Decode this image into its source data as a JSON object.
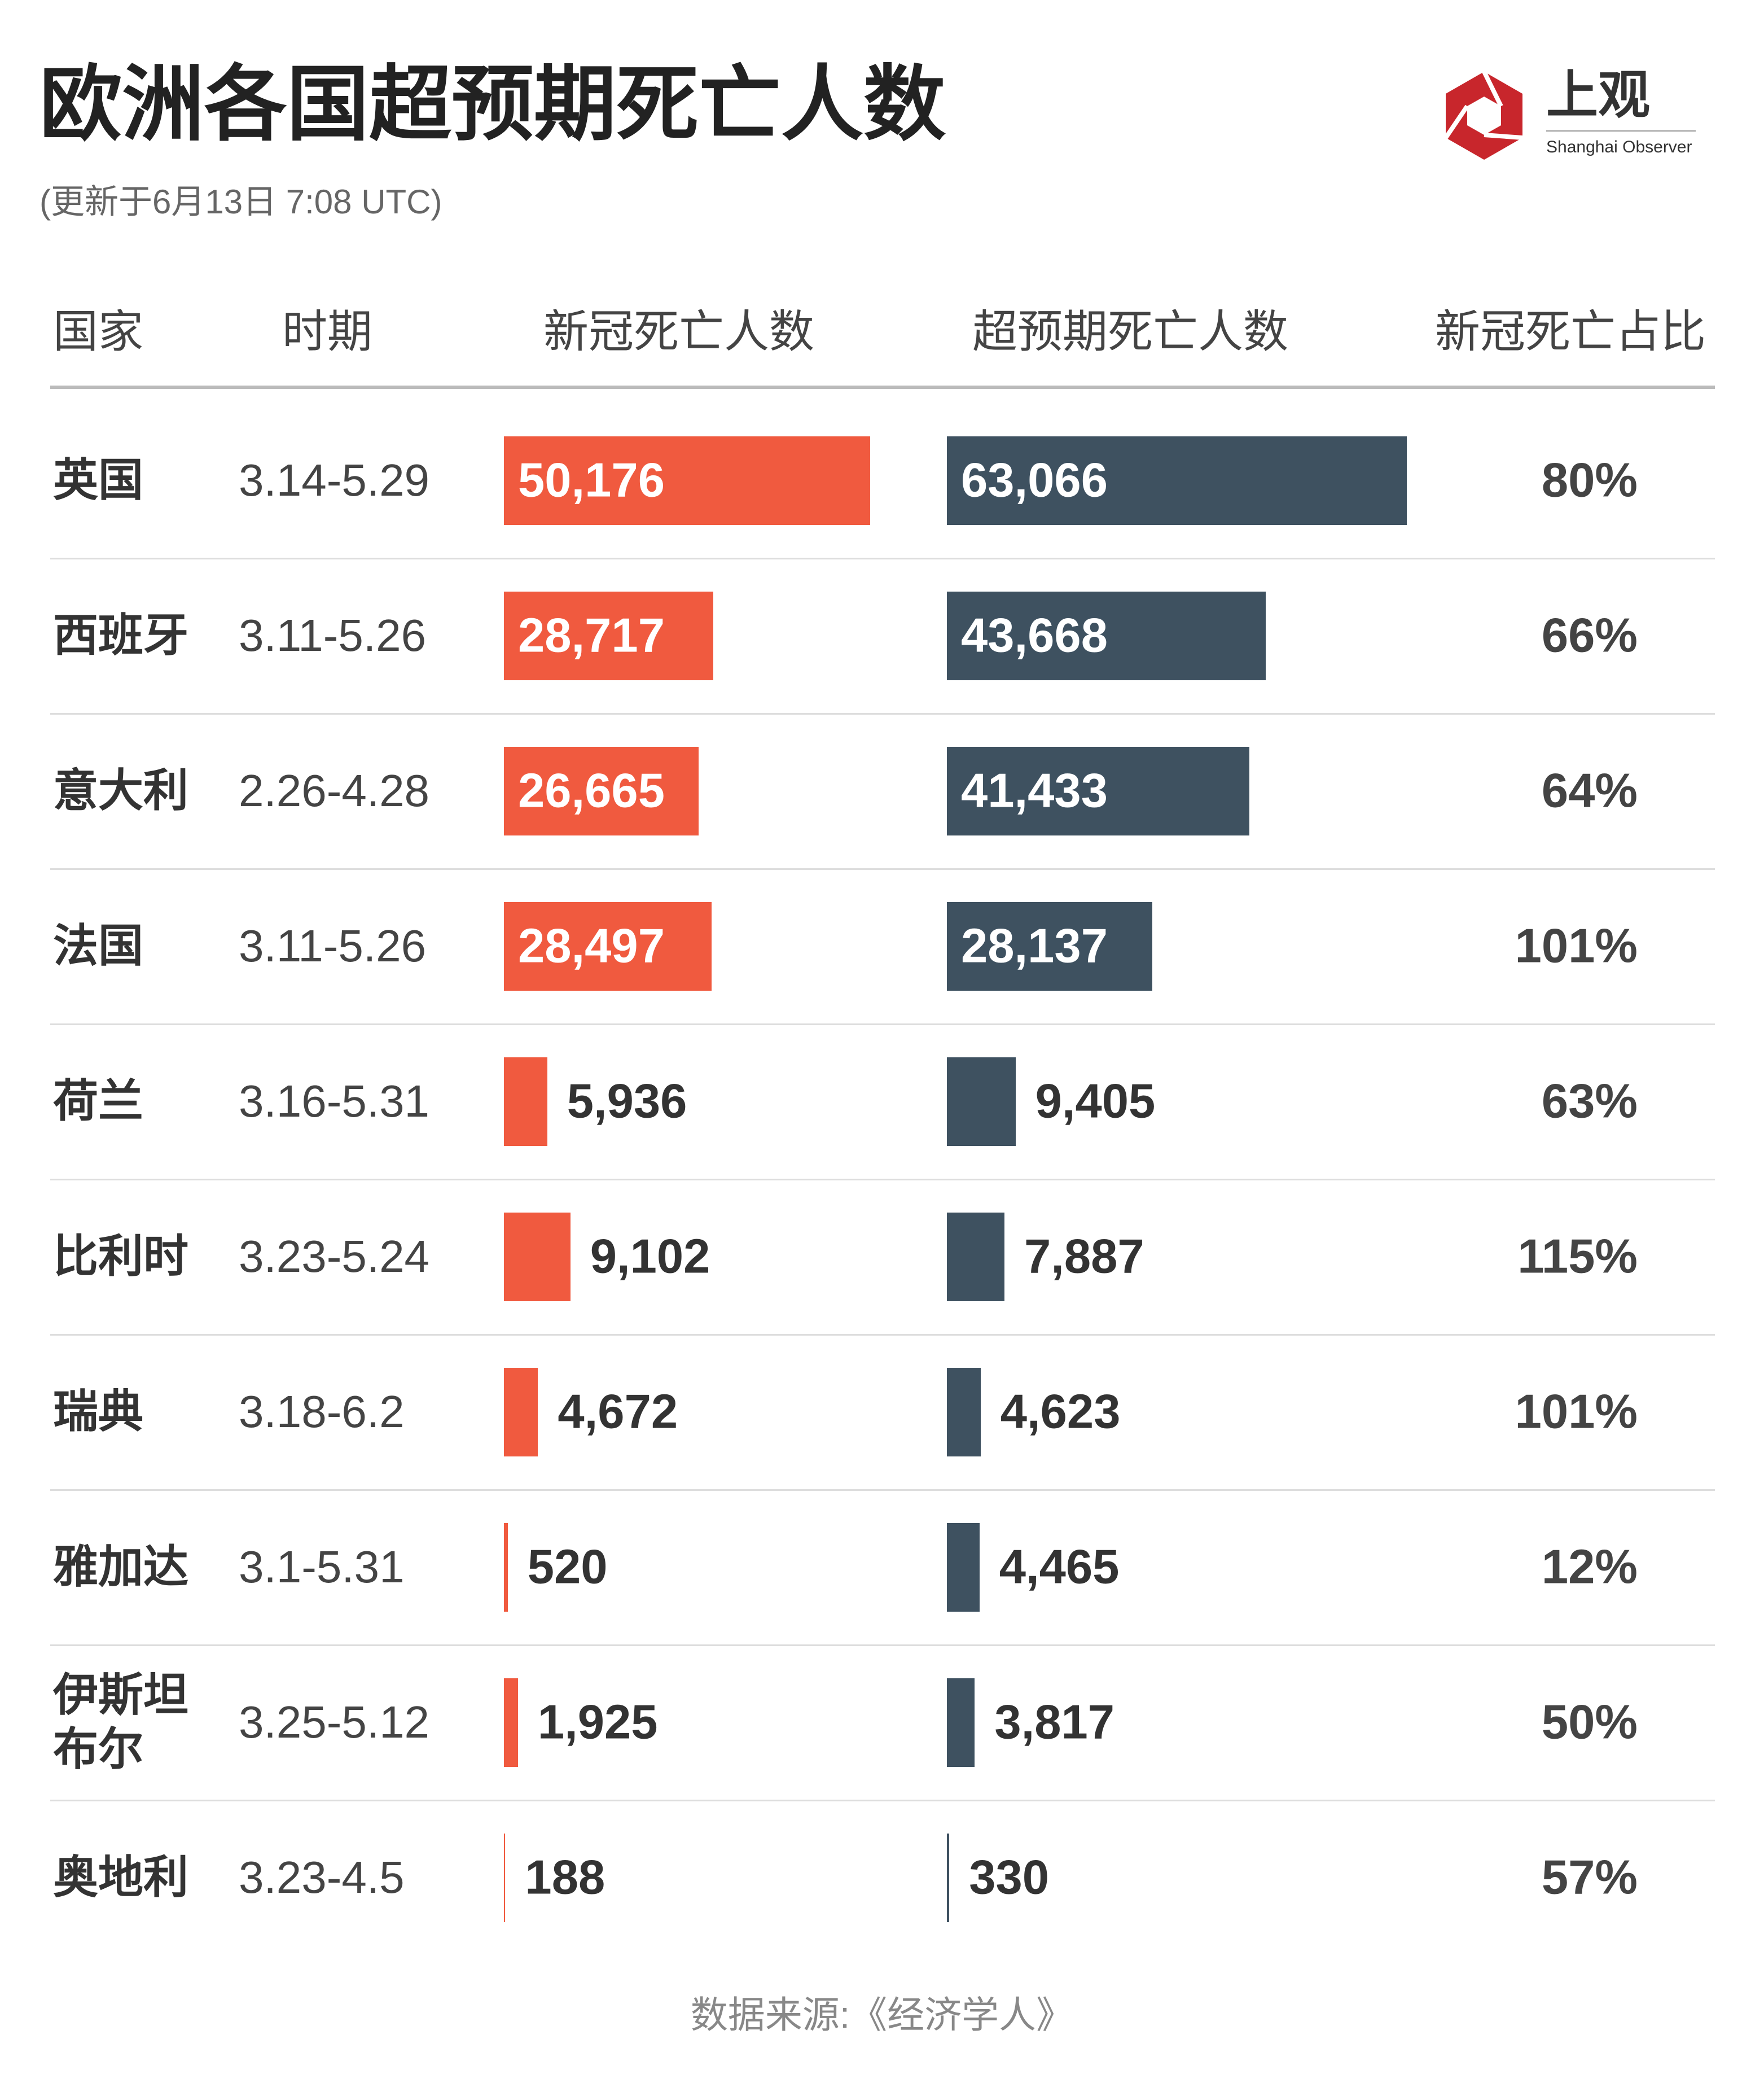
{
  "chart_data": {
    "type": "table-bar",
    "title": "欧洲各国超预期死亡人数",
    "subtitle": "(更新于6月13日 7:08 UTC)",
    "columns": [
      "国家",
      "时期"
    ],
    "categories": [
      "英国",
      "西班牙",
      "意大利",
      "法国",
      "荷兰",
      "比利时",
      "瑞典",
      "雅加达",
      "伊斯坦布尔",
      "奥地利"
    ],
    "periods": [
      "3.14-5.29",
      "3.11-5.26",
      "2.26-4.28",
      "3.11-5.26",
      "3.16-5.31",
      "3.23-5.24",
      "3.18-6.2",
      "3.1-5.31",
      "3.25-5.12",
      "3.23-4.5"
    ],
    "series": [
      {
        "name": "新冠死亡人数",
        "color": "#f05a3f",
        "values": [
          50176,
          28717,
          26665,
          28497,
          5936,
          9102,
          4672,
          520,
          1925,
          188
        ],
        "value_labels": [
          "50,176",
          "28,717",
          "26,665",
          "28,497",
          "5,936",
          "9,102",
          "4,672",
          "520",
          "1,925",
          "188"
        ]
      },
      {
        "name": "超预期死亡人数",
        "color": "#3e5160",
        "values": [
          63066,
          43668,
          41433,
          28137,
          9405,
          7887,
          4623,
          4465,
          3817,
          330
        ],
        "value_labels": [
          "63,066",
          "43,668",
          "41,433",
          "28,137",
          "9,405",
          "7,887",
          "4,623",
          "4,465",
          "3,817",
          "330"
        ]
      }
    ],
    "ratio": {
      "name": "新冠死亡占比",
      "values": [
        80,
        66,
        64,
        101,
        63,
        115,
        101,
        12,
        50,
        57
      ],
      "value_labels": [
        "80%",
        "66%",
        "64%",
        "101%",
        "63%",
        "115%",
        "101%",
        "12%",
        "50%",
        "57%"
      ]
    },
    "source": "数据来源:《经济学人》"
  },
  "brand": {
    "name": "上观",
    "name_en": "Shanghai Observer"
  }
}
